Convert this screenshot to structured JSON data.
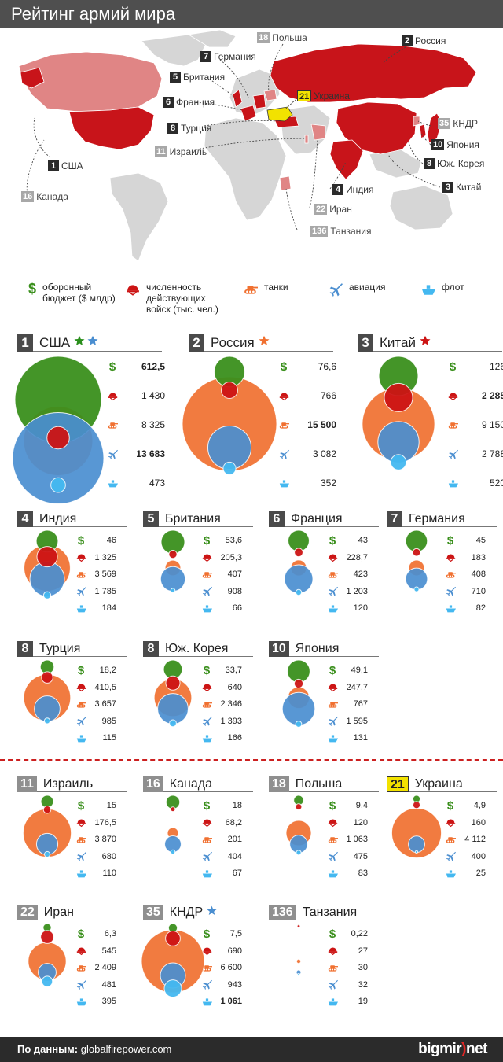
{
  "title": "Рейтинг армий мира",
  "legend": [
    {
      "key": "budget",
      "icon": "dollar-icon",
      "label": "оборонный\nбюджет ($ млдр)"
    },
    {
      "key": "troops",
      "icon": "helmet-icon",
      "label": "численность\nдействующих\nвойск (тыс. чел.)"
    },
    {
      "key": "tanks",
      "icon": "tank-icon",
      "label": "танки"
    },
    {
      "key": "aviation",
      "icon": "plane-icon",
      "label": "авиация"
    },
    {
      "key": "fleet",
      "icon": "ship-icon",
      "label": "флот"
    }
  ],
  "colors": {
    "budget": "#3a8f1c",
    "troops": "#cc1414",
    "tanks": "#f07030",
    "aviation": "#4a8ed0",
    "fleet": "#44b8f0",
    "map_top": "#c8141a",
    "map_other": "#e08585",
    "map_land": "#d6d6d6"
  },
  "map_labels": [
    {
      "rank": "1",
      "name": "США",
      "style": "top"
    },
    {
      "rank": "2",
      "name": "Россия",
      "style": "top"
    },
    {
      "rank": "3",
      "name": "Китай",
      "style": "top"
    },
    {
      "rank": "4",
      "name": "Индия",
      "style": "top"
    },
    {
      "rank": "5",
      "name": "Британия",
      "style": "top"
    },
    {
      "rank": "6",
      "name": "Франция",
      "style": "top"
    },
    {
      "rank": "7",
      "name": "Германия",
      "style": "top"
    },
    {
      "rank": "8",
      "name": "Турция",
      "style": "top"
    },
    {
      "rank": "8",
      "name": "Юж. Корея",
      "style": "top"
    },
    {
      "rank": "10",
      "name": "Япония",
      "style": "top"
    },
    {
      "rank": "11",
      "name": "Израиль",
      "style": "grey"
    },
    {
      "rank": "16",
      "name": "Канада",
      "style": "grey"
    },
    {
      "rank": "18",
      "name": "Польша",
      "style": "grey"
    },
    {
      "rank": "21",
      "name": "Украина",
      "style": "ua"
    },
    {
      "rank": "22",
      "name": "Иран",
      "style": "grey"
    },
    {
      "rank": "35",
      "name": "КНДР",
      "style": "grey"
    },
    {
      "rank": "136",
      "name": "Танзания",
      "style": "grey"
    }
  ],
  "chart_data": {
    "type": "bubble",
    "title": "Рейтинг армий мира",
    "metrics": [
      "budget",
      "troops",
      "tanks",
      "aviation",
      "fleet"
    ],
    "countries": [
      {
        "rank": "1",
        "name": "США",
        "stars": [
          "#2a8f1c",
          "#4a8ed0"
        ],
        "values": [
          "612,5",
          "1 430",
          "8 325",
          "13 683",
          "473"
        ],
        "bold": [
          true,
          false,
          false,
          true,
          false
        ]
      },
      {
        "rank": "2",
        "name": "Россия",
        "stars": [
          "#f07030"
        ],
        "values": [
          "76,6",
          "766",
          "15 500",
          "3 082",
          "352"
        ],
        "bold": [
          false,
          false,
          true,
          false,
          false
        ]
      },
      {
        "rank": "3",
        "name": "Китай",
        "stars": [
          "#cc1414"
        ],
        "values": [
          "126",
          "2 285",
          "9 150",
          "2 788",
          "520"
        ],
        "bold": [
          false,
          true,
          false,
          false,
          false
        ]
      },
      {
        "rank": "4",
        "name": "Индия",
        "stars": [],
        "values": [
          "46",
          "1 325",
          "3 569",
          "1 785",
          "184"
        ],
        "bold": [
          false,
          false,
          false,
          false,
          false
        ]
      },
      {
        "rank": "5",
        "name": "Британия",
        "stars": [],
        "values": [
          "53,6",
          "205,3",
          "407",
          "908",
          "66"
        ],
        "bold": [
          false,
          false,
          false,
          false,
          false
        ]
      },
      {
        "rank": "6",
        "name": "Франция",
        "stars": [],
        "values": [
          "43",
          "228,7",
          "423",
          "1 203",
          "120"
        ],
        "bold": [
          false,
          false,
          false,
          false,
          false
        ]
      },
      {
        "rank": "7",
        "name": "Германия",
        "stars": [],
        "values": [
          "45",
          "183",
          "408",
          "710",
          "82"
        ],
        "bold": [
          false,
          false,
          false,
          false,
          false
        ]
      },
      {
        "rank": "8",
        "name": "Турция",
        "stars": [],
        "values": [
          "18,2",
          "410,5",
          "3 657",
          "985",
          "115"
        ],
        "bold": [
          false,
          false,
          false,
          false,
          false
        ]
      },
      {
        "rank": "8",
        "name": "Юж. Корея",
        "stars": [],
        "values": [
          "33,7",
          "640",
          "2 346",
          "1 393",
          "166"
        ],
        "bold": [
          false,
          false,
          false,
          false,
          false
        ]
      },
      {
        "rank": "10",
        "name": "Япония",
        "stars": [],
        "values": [
          "49,1",
          "247,7",
          "767",
          "1 595",
          "131"
        ],
        "bold": [
          false,
          false,
          false,
          false,
          false
        ]
      },
      {
        "rank": "11",
        "name": "Израиль",
        "stars": [],
        "values": [
          "15",
          "176,5",
          "3 870",
          "680",
          "110"
        ],
        "bold": [
          false,
          false,
          false,
          false,
          false
        ]
      },
      {
        "rank": "16",
        "name": "Канада",
        "stars": [],
        "values": [
          "18",
          "68,2",
          "201",
          "404",
          "67"
        ],
        "bold": [
          false,
          false,
          false,
          false,
          false
        ]
      },
      {
        "rank": "18",
        "name": "Польша",
        "stars": [],
        "values": [
          "9,4",
          "120",
          "1 063",
          "475",
          "83"
        ],
        "bold": [
          false,
          false,
          false,
          false,
          false
        ]
      },
      {
        "rank": "21",
        "name": "Украина",
        "stars": [],
        "values": [
          "4,9",
          "160",
          "4 112",
          "400",
          "25"
        ],
        "bold": [
          false,
          false,
          false,
          false,
          false
        ]
      },
      {
        "rank": "22",
        "name": "Иран",
        "stars": [],
        "values": [
          "6,3",
          "545",
          "2 409",
          "481",
          "395"
        ],
        "bold": [
          false,
          false,
          false,
          false,
          false
        ]
      },
      {
        "rank": "35",
        "name": "КНДР",
        "stars": [
          "#4a8ed0"
        ],
        "values": [
          "7,5",
          "690",
          "6 600",
          "943",
          "1 061"
        ],
        "bold": [
          false,
          false,
          false,
          false,
          true
        ]
      },
      {
        "rank": "136",
        "name": "Танзания",
        "stars": [],
        "values": [
          "0,22",
          "27",
          "30",
          "32",
          "19"
        ],
        "bold": [
          false,
          false,
          false,
          false,
          false
        ]
      }
    ]
  },
  "footer": {
    "source_label": "По данным:",
    "source_url": "globalfirepower.com",
    "logo_main": "bigmir",
    "logo_paren": ")",
    "logo_tail": "net"
  }
}
